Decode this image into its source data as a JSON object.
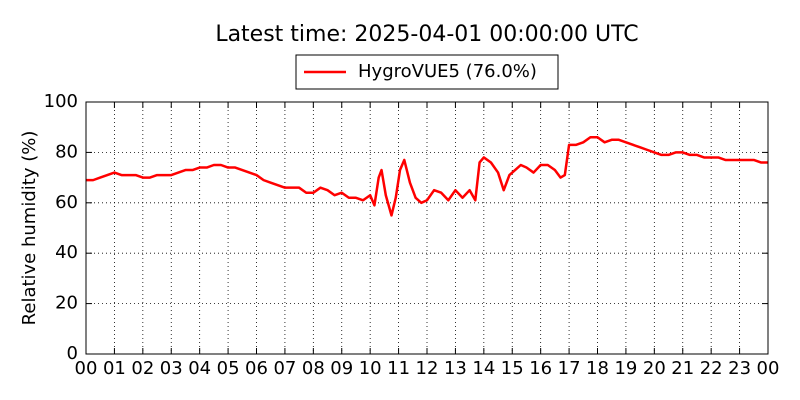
{
  "chart_data": {
    "type": "line",
    "title": "Latest time: 2025-04-01 00:00:00 UTC",
    "y_label": "Relative humidity (%)",
    "x": [
      0,
      0.25,
      0.5,
      0.75,
      1,
      1.25,
      1.5,
      1.75,
      2,
      2.25,
      2.5,
      2.75,
      3,
      3.25,
      3.5,
      3.75,
      4,
      4.25,
      4.5,
      4.75,
      5,
      5.25,
      5.5,
      5.75,
      6,
      6.25,
      6.5,
      6.75,
      7,
      7.25,
      7.5,
      7.75,
      8,
      8.25,
      8.5,
      8.75,
      9,
      9.25,
      9.5,
      9.75,
      10,
      10.15,
      10.3,
      10.4,
      10.55,
      10.75,
      10.9,
      11.05,
      11.2,
      11.4,
      11.6,
      11.8,
      12,
      12.25,
      12.5,
      12.75,
      13,
      13.25,
      13.5,
      13.7,
      13.85,
      14,
      14.25,
      14.5,
      14.7,
      14.9,
      15.1,
      15.3,
      15.5,
      15.75,
      16,
      16.25,
      16.5,
      16.7,
      16.85,
      17,
      17.25,
      17.5,
      17.75,
      18,
      18.25,
      18.5,
      18.75,
      19,
      19.25,
      19.5,
      19.75,
      20,
      20.25,
      20.5,
      20.75,
      21,
      21.25,
      21.5,
      21.75,
      22,
      22.25,
      22.5,
      22.75,
      23,
      23.25,
      23.5,
      23.75,
      24
    ],
    "series": [
      {
        "name": "HygroVUE5 (76.0%)",
        "color": "#ff0000",
        "values": [
          69,
          69,
          70,
          71,
          72,
          71,
          71,
          71,
          70,
          70,
          71,
          71,
          71,
          72,
          73,
          73,
          74,
          74,
          75,
          75,
          74,
          74,
          73,
          72,
          71,
          69,
          68,
          67,
          66,
          66,
          66,
          64,
          64,
          66,
          65,
          63,
          64,
          62,
          62,
          61,
          63,
          59,
          70,
          73,
          63,
          55,
          62,
          73,
          77,
          68,
          62,
          60,
          61,
          65,
          64,
          61,
          65,
          62,
          65,
          61,
          76,
          78,
          76,
          72,
          65,
          71,
          73,
          75,
          74,
          72,
          75,
          75,
          73,
          70,
          71,
          83,
          83,
          84,
          86,
          86,
          84,
          85,
          85,
          84,
          83,
          82,
          81,
          80,
          79,
          79,
          80,
          80,
          79,
          79,
          78,
          78,
          78,
          77,
          77,
          77,
          77,
          77,
          76,
          76
        ]
      }
    ],
    "xlim": [
      0,
      24
    ],
    "xticks": [
      {
        "value": 0,
        "label": "00"
      },
      {
        "value": 1,
        "label": "01"
      },
      {
        "value": 2,
        "label": "02"
      },
      {
        "value": 3,
        "label": "03"
      },
      {
        "value": 4,
        "label": "04"
      },
      {
        "value": 5,
        "label": "05"
      },
      {
        "value": 6,
        "label": "06"
      },
      {
        "value": 7,
        "label": "07"
      },
      {
        "value": 8,
        "label": "08"
      },
      {
        "value": 9,
        "label": "09"
      },
      {
        "value": 10,
        "label": "10"
      },
      {
        "value": 11,
        "label": "11"
      },
      {
        "value": 12,
        "label": "12"
      },
      {
        "value": 13,
        "label": "13"
      },
      {
        "value": 14,
        "label": "14"
      },
      {
        "value": 15,
        "label": "15"
      },
      {
        "value": 16,
        "label": "16"
      },
      {
        "value": 17,
        "label": "17"
      },
      {
        "value": 18,
        "label": "18"
      },
      {
        "value": 19,
        "label": "19"
      },
      {
        "value": 20,
        "label": "20"
      },
      {
        "value": 21,
        "label": "21"
      },
      {
        "value": 22,
        "label": "22"
      },
      {
        "value": 23,
        "label": "23"
      },
      {
        "value": 24,
        "label": "00"
      }
    ],
    "ylim": [
      0,
      100
    ],
    "yticks": [
      0,
      20,
      40,
      60,
      80,
      100
    ],
    "grid": true,
    "legend": "top"
  }
}
